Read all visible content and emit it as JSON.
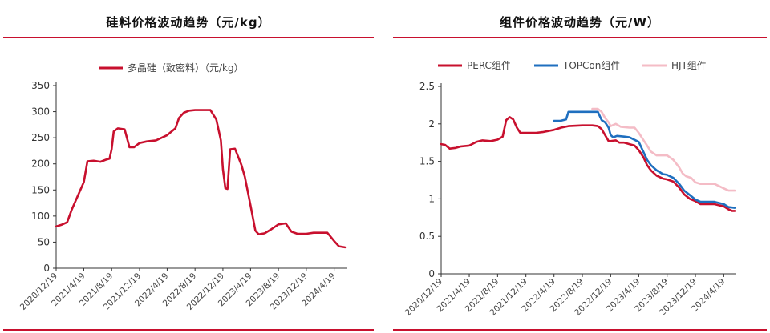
{
  "colors": {
    "accent": "#c8102e",
    "perc": "#c8102e",
    "topcon": "#1f6fbf",
    "hjt": "#f4bcc6",
    "axis": "#333333"
  },
  "chart_data": [
    {
      "type": "line",
      "title": "硅料价格波动趋势（元/kg）",
      "xlabel": "",
      "ylabel": "",
      "x_ticks": [
        "2020/12/19",
        "2021/4/19",
        "2021/8/19",
        "2021/12/19",
        "2022/4/19",
        "2022/8/19",
        "2022/12/19",
        "2023/4/19",
        "2023/8/19",
        "2023/12/19",
        "2024/4/19"
      ],
      "y_ticks": [
        "0",
        "50",
        "100",
        "150",
        "200",
        "250",
        "300",
        "350"
      ],
      "ylim": [
        0,
        350
      ],
      "grid": false,
      "legend": "top",
      "series": [
        {
          "name": "多晶硅（致密料）（元/kg）",
          "points": [
            [
              "2020/12/19",
              80
            ],
            [
              "2021/1/10",
              83
            ],
            [
              "2021/2/5",
              88
            ],
            [
              "2021/2/25",
              112
            ],
            [
              "2021/3/20",
              135
            ],
            [
              "2021/4/19",
              165
            ],
            [
              "2021/5/5",
              205
            ],
            [
              "2021/6/1",
              206
            ],
            [
              "2021/7/1",
              204
            ],
            [
              "2021/7/25",
              208
            ],
            [
              "2021/8/10",
              210
            ],
            [
              "2021/8/19",
              228
            ],
            [
              "2021/8/28",
              262
            ],
            [
              "2021/9/15",
              268
            ],
            [
              "2021/10/15",
              266
            ],
            [
              "2021/11/5",
              232
            ],
            [
              "2021/11/25",
              232
            ],
            [
              "2021/12/19",
              240
            ],
            [
              "2022/1/20",
              243
            ],
            [
              "2022/3/1",
              245
            ],
            [
              "2022/4/19",
              255
            ],
            [
              "2022/5/25",
              268
            ],
            [
              "2022/6/10",
              288
            ],
            [
              "2022/7/1",
              298
            ],
            [
              "2022/7/25",
              302
            ],
            [
              "2022/8/19",
              303
            ],
            [
              "2022/10/1",
              303
            ],
            [
              "2022/10/25",
              303
            ],
            [
              "2022/11/20",
              285
            ],
            [
              "2022/12/10",
              245
            ],
            [
              "2022/12/19",
              190
            ],
            [
              "2022/12/30",
              153
            ],
            [
              "2023/1/8",
              152
            ],
            [
              "2023/1/20",
              228
            ],
            [
              "2023/2/10",
              229
            ],
            [
              "2023/3/10",
              198
            ],
            [
              "2023/3/25",
              175
            ],
            [
              "2023/4/19",
              120
            ],
            [
              "2023/5/10",
              72
            ],
            [
              "2023/5/25",
              65
            ],
            [
              "2023/6/20",
              67
            ],
            [
              "2023/7/20",
              75
            ],
            [
              "2023/8/19",
              84
            ],
            [
              "2023/9/20",
              86
            ],
            [
              "2023/10/15",
              70
            ],
            [
              "2023/11/10",
              66
            ],
            [
              "2023/12/19",
              66
            ],
            [
              "2024/1/20",
              68
            ],
            [
              "2024/2/20",
              68
            ],
            [
              "2024/3/20",
              68
            ],
            [
              "2024/4/19",
              52
            ],
            [
              "2024/5/10",
              42
            ],
            [
              "2024/6/5",
              40
            ]
          ]
        }
      ]
    },
    {
      "type": "line",
      "title": "组件价格波动趋势（元/W）",
      "xlabel": "",
      "ylabel": "",
      "x_ticks": [
        "2020/12/19",
        "2021/4/19",
        "2021/8/19",
        "2021/12/19",
        "2022/4/19",
        "2022/8/19",
        "2022/12/19",
        "2023/4/19",
        "2023/8/19",
        "2023/12/19",
        "2024/4/19"
      ],
      "y_ticks": [
        "0",
        "0.5",
        "1",
        "1.5",
        "2",
        "2.5"
      ],
      "ylim": [
        0,
        2.5
      ],
      "grid": false,
      "legend": "top",
      "series": [
        {
          "name": "PERC组件",
          "points": [
            [
              "2020/12/19",
              1.73
            ],
            [
              "2021/1/5",
              1.72
            ],
            [
              "2021/1/25",
              1.67
            ],
            [
              "2021/2/20",
              1.68
            ],
            [
              "2021/3/15",
              1.7
            ],
            [
              "2021/4/19",
              1.71
            ],
            [
              "2021/5/20",
              1.76
            ],
            [
              "2021/6/15",
              1.78
            ],
            [
              "2021/7/20",
              1.77
            ],
            [
              "2021/8/19",
              1.79
            ],
            [
              "2021/9/10",
              1.83
            ],
            [
              "2021/9/25",
              2.05
            ],
            [
              "2021/10/10",
              2.09
            ],
            [
              "2021/10/25",
              2.06
            ],
            [
              "2021/11/10",
              1.95
            ],
            [
              "2021/11/25",
              1.88
            ],
            [
              "2021/12/19",
              1.88
            ],
            [
              "2022/2/1",
              1.88
            ],
            [
              "2022/3/1",
              1.89
            ],
            [
              "2022/4/19",
              1.92
            ],
            [
              "2022/5/20",
              1.95
            ],
            [
              "2022/6/20",
              1.97
            ],
            [
              "2022/8/19",
              1.98
            ],
            [
              "2022/10/1",
              1.98
            ],
            [
              "2022/10/25",
              1.97
            ],
            [
              "2022/11/10",
              1.93
            ],
            [
              "2022/11/25",
              1.85
            ],
            [
              "2022/12/10",
              1.77
            ],
            [
              "2022/12/19",
              1.77
            ],
            [
              "2023/1/10",
              1.78
            ],
            [
              "2023/1/25",
              1.75
            ],
            [
              "2023/2/15",
              1.75
            ],
            [
              "2023/3/10",
              1.73
            ],
            [
              "2023/4/1",
              1.71
            ],
            [
              "2023/4/19",
              1.65
            ],
            [
              "2023/5/10",
              1.55
            ],
            [
              "2023/5/25",
              1.45
            ],
            [
              "2023/6/10",
              1.38
            ],
            [
              "2023/7/5",
              1.31
            ],
            [
              "2023/8/1",
              1.27
            ],
            [
              "2023/8/19",
              1.26
            ],
            [
              "2023/9/15",
              1.23
            ],
            [
              "2023/10/10",
              1.15
            ],
            [
              "2023/11/1",
              1.06
            ],
            [
              "2023/11/25",
              1.0
            ],
            [
              "2023/12/19",
              0.97
            ],
            [
              "2024/1/10",
              0.93
            ],
            [
              "2024/2/10",
              0.93
            ],
            [
              "2024/3/10",
              0.93
            ],
            [
              "2024/4/19",
              0.9
            ],
            [
              "2024/5/10",
              0.86
            ],
            [
              "2024/5/25",
              0.84
            ],
            [
              "2024/6/5",
              0.84
            ]
          ]
        },
        {
          "name": "TOPCon组件",
          "points": [
            [
              "2022/4/19",
              2.04
            ],
            [
              "2022/5/15",
              2.04
            ],
            [
              "2022/6/10",
              2.06
            ],
            [
              "2022/6/20",
              2.16
            ],
            [
              "2022/8/19",
              2.16
            ],
            [
              "2022/9/20",
              2.16
            ],
            [
              "2022/10/25",
              2.16
            ],
            [
              "2022/11/10",
              2.05
            ],
            [
              "2022/11/25",
              2.02
            ],
            [
              "2022/12/10",
              1.95
            ],
            [
              "2022/12/19",
              1.85
            ],
            [
              "2022/12/30",
              1.82
            ],
            [
              "2023/1/15",
              1.84
            ],
            [
              "2023/2/15",
              1.83
            ],
            [
              "2023/3/10",
              1.82
            ],
            [
              "2023/4/19",
              1.76
            ],
            [
              "2023/5/10",
              1.62
            ],
            [
              "2023/5/25",
              1.52
            ],
            [
              "2023/6/10",
              1.45
            ],
            [
              "2023/7/5",
              1.38
            ],
            [
              "2023/8/1",
              1.33
            ],
            [
              "2023/8/19",
              1.32
            ],
            [
              "2023/9/15",
              1.28
            ],
            [
              "2023/10/10",
              1.2
            ],
            [
              "2023/11/1",
              1.11
            ],
            [
              "2023/11/25",
              1.05
            ],
            [
              "2023/12/19",
              0.99
            ],
            [
              "2024/1/10",
              0.96
            ],
            [
              "2024/2/10",
              0.96
            ],
            [
              "2024/3/10",
              0.96
            ],
            [
              "2024/4/19",
              0.93
            ],
            [
              "2024/5/10",
              0.89
            ],
            [
              "2024/6/5",
              0.88
            ]
          ]
        },
        {
          "name": "HJT组件",
          "points": [
            [
              "2022/10/1",
              2.2
            ],
            [
              "2022/10/25",
              2.2
            ],
            [
              "2022/11/10",
              2.16
            ],
            [
              "2022/11/25",
              2.08
            ],
            [
              "2022/12/10",
              2.02
            ],
            [
              "2022/12/19",
              1.97
            ],
            [
              "2023/1/10",
              2.0
            ],
            [
              "2023/2/1",
              1.96
            ],
            [
              "2023/3/10",
              1.95
            ],
            [
              "2023/4/1",
              1.95
            ],
            [
              "2023/4/19",
              1.88
            ],
            [
              "2023/5/10",
              1.78
            ],
            [
              "2023/5/25",
              1.71
            ],
            [
              "2023/6/10",
              1.63
            ],
            [
              "2023/7/5",
              1.58
            ],
            [
              "2023/8/19",
              1.58
            ],
            [
              "2023/9/15",
              1.52
            ],
            [
              "2023/10/10",
              1.42
            ],
            [
              "2023/10/25",
              1.34
            ],
            [
              "2023/11/10",
              1.3
            ],
            [
              "2023/12/1",
              1.28
            ],
            [
              "2023/12/19",
              1.22
            ],
            [
              "2024/1/10",
              1.2
            ],
            [
              "2024/3/10",
              1.2
            ],
            [
              "2024/4/19",
              1.14
            ],
            [
              "2024/5/10",
              1.11
            ],
            [
              "2024/6/5",
              1.11
            ]
          ]
        }
      ]
    }
  ]
}
